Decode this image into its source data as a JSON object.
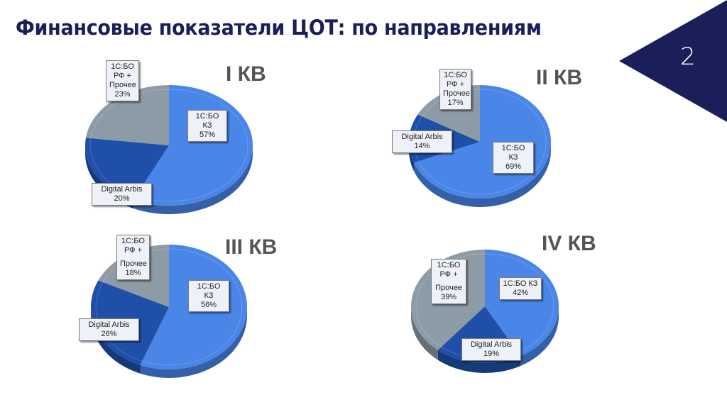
{
  "slide": {
    "title": "Финансовые показатели ЦОТ: по направлениям",
    "page_number": "2",
    "accent_color": "#1a1f5a"
  },
  "colors": {
    "kz": "#4a86e8",
    "arbis": "#1f4fa8",
    "rf": "#8d9ba6"
  },
  "chart_data": [
    {
      "type": "pie",
      "title": "I КВ",
      "categories": [
        "1С:БО КЗ",
        "Digital Arbis",
        "1С:БО РФ + Прочее"
      ],
      "values": [
        57,
        20,
        23
      ],
      "labels": {
        "kz": {
          "line1": "1С:БО КЗ",
          "pct": "57%"
        },
        "arbis": {
          "line1": "Digital Arbis",
          "pct": "20%"
        },
        "rf": {
          "line1": "1С:БО",
          "line2": "РФ +",
          "line3": "Прочее",
          "pct": "23%"
        }
      }
    },
    {
      "type": "pie",
      "title": "II КВ",
      "categories": [
        "1С:БО КЗ",
        "Digital Arbis",
        "1С:БО РФ + Прочее"
      ],
      "values": [
        69,
        14,
        17
      ],
      "labels": {
        "kz": {
          "line1": "1С:БО КЗ",
          "pct": "69%"
        },
        "arbis": {
          "line1": "Digital Arbis",
          "pct": "14%"
        },
        "rf": {
          "line1": "1С:БО",
          "line2": "РФ +",
          "line3": "Прочее",
          "pct": "17%"
        }
      }
    },
    {
      "type": "pie",
      "title": "III КВ",
      "categories": [
        "1С:БО КЗ",
        "Digital Arbis",
        "1С:БО РФ + Прочее"
      ],
      "values": [
        56,
        26,
        18
      ],
      "labels": {
        "kz": {
          "line1": "1С:БО КЗ",
          "pct": "56%"
        },
        "arbis": {
          "line1": "Digital Arbis",
          "pct": "26%"
        },
        "rf": {
          "line1": "1С:БО",
          "line2": "РФ +",
          "line3": "Прочее",
          "pct": "18%"
        }
      }
    },
    {
      "type": "pie",
      "title": "IV КВ",
      "categories": [
        "1С:БО КЗ",
        "Digital Arbis",
        "1С:БО РФ + Прочее"
      ],
      "values": [
        42,
        19,
        39
      ],
      "labels": {
        "kz": {
          "line1": "1С:БО КЗ",
          "pct": "42%"
        },
        "arbis": {
          "line1": "Digital Arbis",
          "pct": "19%"
        },
        "rf": {
          "line1": "1С:БО",
          "line2": "РФ +",
          "line3": "Прочее",
          "pct": "39%"
        }
      }
    }
  ]
}
